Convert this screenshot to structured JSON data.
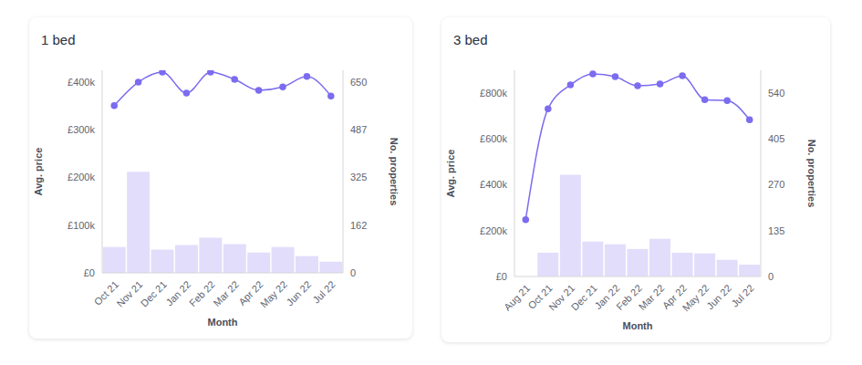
{
  "chart_data": [
    {
      "type": "bar_line",
      "title": "1 bed",
      "x_label": "Month",
      "y_label": "Avg. price",
      "y2_label": "No. properties",
      "categories": [
        "Oct 21",
        "Nov 21",
        "Dec 21",
        "Jan 22",
        "Feb 22",
        "Mar 22",
        "Apr 22",
        "May 22",
        "Jun 22",
        "Jul 22"
      ],
      "series": [
        {
          "type": "bar",
          "axis": "y2",
          "color": "#e2ddfb",
          "values": [
            88,
            344,
            79,
            95,
            120,
            98,
            69,
            88,
            57,
            38
          ]
        },
        {
          "type": "line",
          "axis": "y",
          "color": "#7b6cf0",
          "marker": "circle",
          "values": [
            351000,
            400000,
            421000,
            377000,
            421000,
            406000,
            383000,
            390000,
            412000,
            371000
          ]
        }
      ],
      "ylim": [
        0,
        425000
      ],
      "yticks": [
        {
          "value": 0,
          "label": "£0"
        },
        {
          "value": 100000,
          "label": "£100k"
        },
        {
          "value": 200000,
          "label": "£200k"
        },
        {
          "value": 300000,
          "label": "£300k"
        },
        {
          "value": 400000,
          "label": "£400k"
        }
      ],
      "y2lim": [
        0,
        690
      ],
      "y2ticks": [
        0,
        162,
        325,
        487,
        650
      ],
      "grid": false
    },
    {
      "type": "bar_line",
      "title": "3 bed",
      "x_label": "Month",
      "y_label": "Avg. price",
      "y2_label": "No. properties",
      "categories": [
        "Aug 21",
        "Oct 21",
        "Nov 21",
        "Dec 21",
        "Jan 22",
        "Feb 22",
        "Mar 22",
        "Apr 22",
        "May 22",
        "Jun 22",
        "Jul 22"
      ],
      "series": [
        {
          "type": "bar",
          "axis": "y2",
          "color": "#e2ddfb",
          "values": [
            0,
            70,
            300,
            103,
            95,
            81,
            111,
            70,
            68,
            49,
            35
          ]
        },
        {
          "type": "line",
          "axis": "y",
          "color": "#7b6cf0",
          "marker": "circle",
          "values": [
            248000,
            732000,
            836000,
            884000,
            872000,
            832000,
            840000,
            876000,
            772000,
            768000,
            684000
          ]
        }
      ],
      "ylim": [
        0,
        900000
      ],
      "yticks": [
        {
          "value": 0,
          "label": "£0"
        },
        {
          "value": 200000,
          "label": "£200k"
        },
        {
          "value": 400000,
          "label": "£400k"
        },
        {
          "value": 600000,
          "label": "£600k"
        },
        {
          "value": 800000,
          "label": "£800k"
        }
      ],
      "y2lim": [
        0,
        607.5
      ],
      "y2ticks": [
        0,
        135,
        270,
        405,
        540
      ],
      "grid": false
    }
  ]
}
